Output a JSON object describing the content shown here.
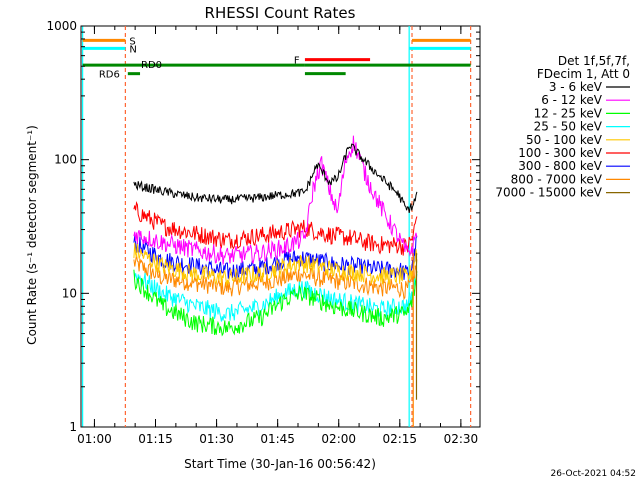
{
  "chart_data": {
    "type": "line",
    "title": "RHESSI Count Rates",
    "xlabel": "Start Time (30-Jan-16 00:56:42)",
    "ylabel": "Count Rate (s⁻¹ detector segment⁻¹)",
    "x_unit": "minutes after 00:56:42",
    "xlim": [
      0,
      98
    ],
    "yscale": "log",
    "ylim": [
      1,
      1000
    ],
    "x_ticks": [
      {
        "x": 3.3,
        "label": "01:00"
      },
      {
        "x": 18.3,
        "label": "01:15"
      },
      {
        "x": 33.3,
        "label": "01:30"
      },
      {
        "x": 48.3,
        "label": "01:45"
      },
      {
        "x": 63.3,
        "label": "02:00"
      },
      {
        "x": 78.3,
        "label": "02:15"
      },
      {
        "x": 93.3,
        "label": "02:30"
      }
    ],
    "y_ticks": [
      {
        "y": 1,
        "label": "1"
      },
      {
        "y": 10,
        "label": "10"
      },
      {
        "y": 100,
        "label": "100"
      },
      {
        "y": 1000,
        "label": "1000"
      }
    ],
    "legend": {
      "position": "right",
      "header": [
        "Det 1f,5f,7f,",
        "FDecim 1, Att 0"
      ]
    },
    "series": [
      {
        "name": "3 - 6 keV",
        "color": "#000000",
        "x": [
          13,
          20,
          28,
          36,
          44,
          50,
          55,
          58,
          61,
          63,
          66,
          70,
          74,
          78,
          80,
          81.5,
          82.5
        ],
        "y": [
          65,
          58,
          52,
          50,
          52,
          55,
          57,
          92,
          68,
          72,
          130,
          95,
          72,
          55,
          42,
          45,
          55
        ]
      },
      {
        "name": "6 - 12 keV",
        "color": "#ff00ff",
        "x": [
          13,
          20,
          28,
          36,
          44,
          50,
          55,
          57,
          59,
          61,
          63,
          65,
          67,
          70,
          74,
          78,
          80,
          81.5,
          82.5
        ],
        "y": [
          28,
          24,
          21,
          19,
          20,
          22,
          26,
          60,
          95,
          60,
          40,
          100,
          135,
          75,
          42,
          26,
          20,
          22,
          30
        ]
      },
      {
        "name": "12 - 25 keV",
        "color": "#00ff00",
        "x": [
          13,
          20,
          28,
          36,
          44,
          50,
          54,
          58,
          62,
          66,
          70,
          74,
          78,
          80,
          81.5,
          82.5
        ],
        "y": [
          13,
          8,
          6,
          5.5,
          6.5,
          9,
          10,
          9,
          8,
          7.5,
          7,
          6.5,
          7,
          7,
          9,
          14
        ]
      },
      {
        "name": "25 - 50 keV",
        "color": "#00ffff",
        "x": [
          13,
          20,
          28,
          36,
          44,
          50,
          54,
          58,
          62,
          66,
          70,
          74,
          78,
          80,
          81.5,
          82.5
        ],
        "y": [
          14,
          10,
          8,
          7,
          8,
          10,
          11,
          10,
          9,
          8.5,
          8,
          7.5,
          8,
          8,
          10,
          15
        ]
      },
      {
        "name": "50 - 100 keV",
        "color": "#ffc800",
        "x": [
          13,
          20,
          28,
          36,
          44,
          50,
          54,
          58,
          62,
          66,
          70,
          74,
          78,
          80,
          81.5,
          82.5
        ],
        "y": [
          21,
          16,
          14,
          13,
          14,
          16,
          17,
          16,
          15,
          14.5,
          14,
          13.5,
          13.5,
          13,
          15,
          22
        ]
      },
      {
        "name": "100 - 300 keV",
        "color": "#ff0000",
        "x": [
          13,
          20,
          28,
          36,
          44,
          50,
          55,
          58,
          62,
          66,
          70,
          74,
          78,
          80,
          81.5,
          82.5
        ],
        "y": [
          42,
          32,
          28,
          25,
          27,
          29,
          31,
          29,
          27,
          26,
          24,
          23,
          23,
          22,
          26,
          38
        ]
      },
      {
        "name": "300 - 800 keV",
        "color": "#0000ff",
        "x": [
          13,
          20,
          28,
          36,
          44,
          50,
          54,
          58,
          62,
          66,
          70,
          74,
          78,
          80,
          81.5,
          82.5
        ],
        "y": [
          24,
          18,
          16,
          14.5,
          15.5,
          18,
          18.5,
          17.5,
          16.5,
          16,
          15.5,
          15,
          15,
          14,
          16,
          25
        ]
      },
      {
        "name": "800 - 7000 keV",
        "color": "#ff8800",
        "x": [
          13,
          20,
          28,
          36,
          44,
          50,
          54,
          58,
          62,
          66,
          70,
          74,
          78,
          80,
          81.5,
          82.5
        ],
        "y": [
          17,
          13,
          12,
          11,
          12,
          13,
          14,
          13,
          12.5,
          12,
          11.5,
          11,
          11,
          10.5,
          12,
          17
        ]
      },
      {
        "name": "7000 - 15000 keV",
        "color": "#886600",
        "x": [],
        "y": []
      }
    ],
    "spike_lines": [
      {
        "color": "#ff8800",
        "x": 81.6,
        "y_from": 1,
        "y_to": 20
      },
      {
        "color": "#886600",
        "x": 82.4,
        "y_from": 1.6,
        "y_to": 20
      }
    ],
    "vertical_markers": [
      {
        "style": "solid",
        "color": "#00ffff",
        "x": 0.4
      },
      {
        "style": "dashed",
        "color": "#ff6633",
        "x": 10.9
      },
      {
        "style": "solid",
        "color": "#00ffff",
        "x": 80.6
      },
      {
        "style": "dashed",
        "color": "#ff6633",
        "x": 81.3
      },
      {
        "style": "dashed",
        "color": "#ff6633",
        "x": 95.7
      }
    ],
    "flags": [
      {
        "label": "S",
        "color": "#ff8800",
        "level": 780,
        "segments": [
          [
            0.4,
            10.9
          ],
          [
            81.3,
            95.7
          ]
        ]
      },
      {
        "label": "N",
        "color": "#00ffff",
        "level": 680,
        "segments": [
          [
            0.4,
            10.9
          ],
          [
            80.6,
            95.7
          ]
        ]
      },
      {
        "label": "F",
        "color": "#ff0000",
        "level": 560,
        "segments": [
          [
            55,
            71
          ]
        ]
      },
      {
        "label": "RD0",
        "color": "#008800",
        "level": 510,
        "segments": [
          [
            0.4,
            55
          ],
          [
            55,
            95.7
          ]
        ]
      },
      {
        "label": "RD6",
        "color": "#008800",
        "level": 440,
        "segments": [
          [
            11.5,
            14.5
          ],
          [
            55,
            65
          ]
        ]
      }
    ],
    "annotations": {
      "footer_date": "26-Oct-2021 04:52"
    }
  }
}
